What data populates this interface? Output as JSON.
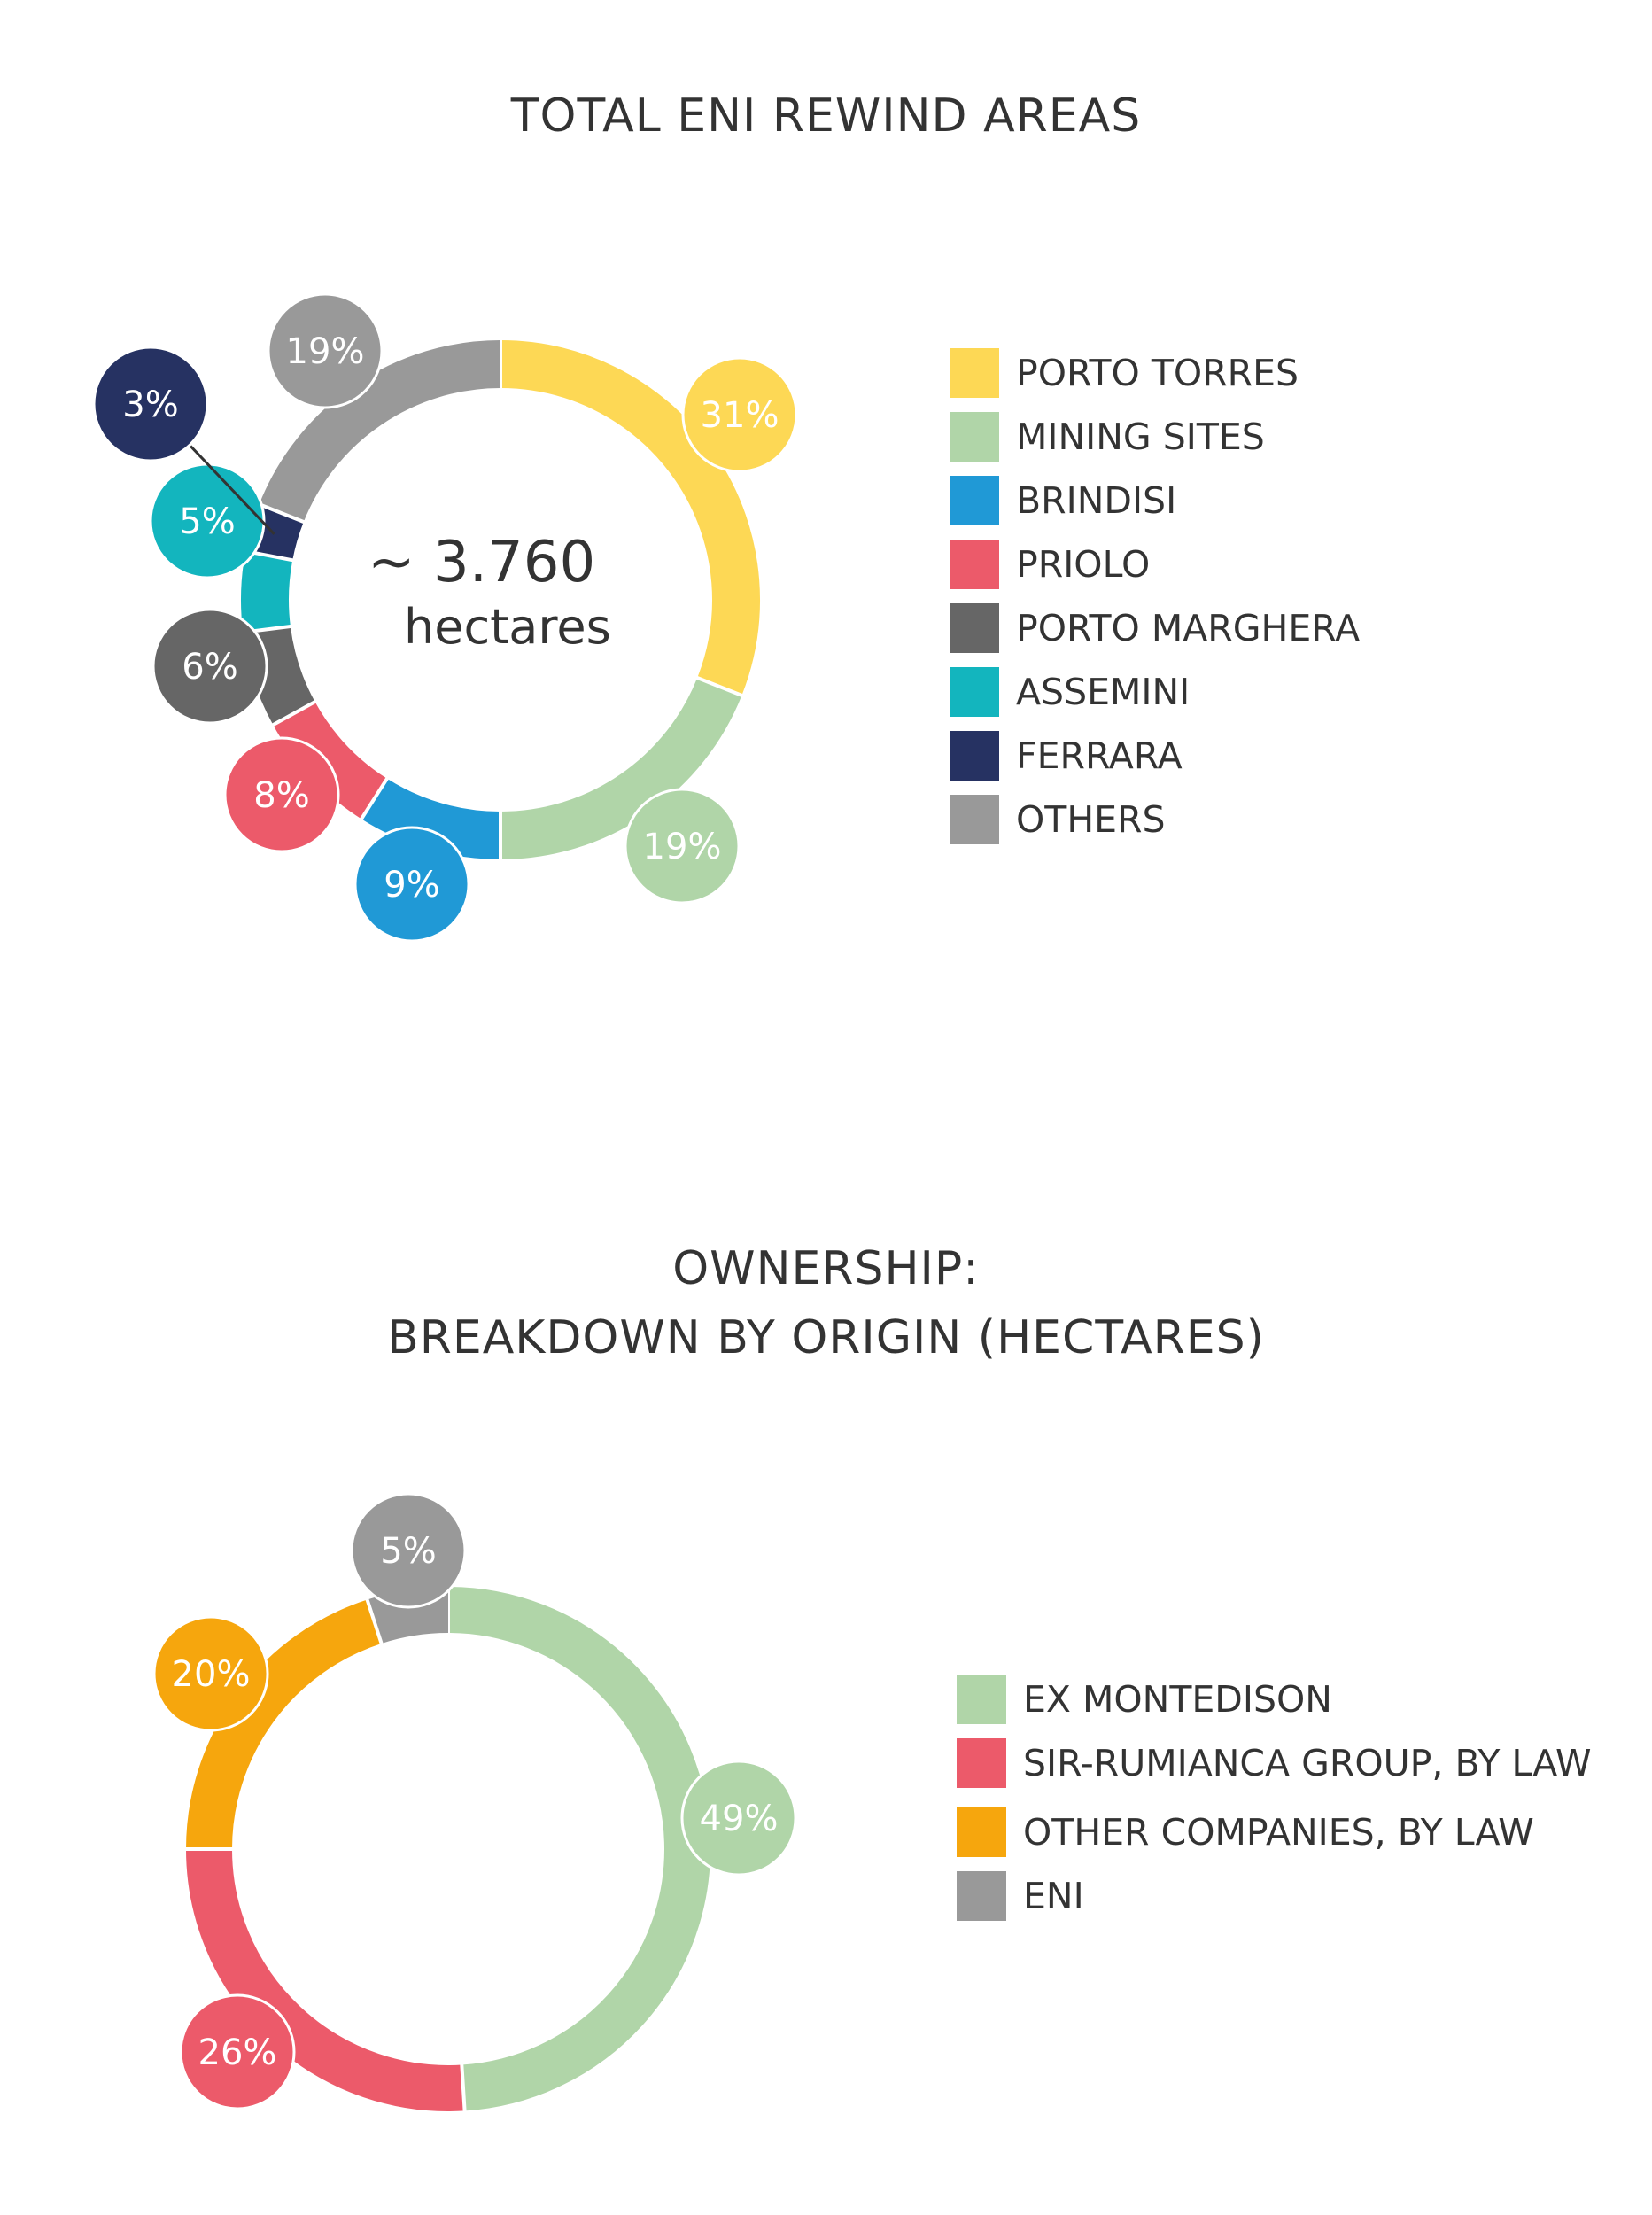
{
  "chart_data": [
    {
      "type": "pie",
      "title": "TOTAL ENI REWIND AREAS",
      "center_value": "~ 3.760",
      "center_unit": "hectares",
      "legend_placement": "right",
      "categories": [
        "PORTO TORRES",
        "MINING SITES",
        "BRINDISI",
        "PRIOLO",
        "PORTO MARGHERA",
        "ASSEMINI",
        "FERRARA",
        "OTHERS"
      ],
      "values": [
        31,
        19,
        9,
        8,
        6,
        5,
        3,
        19
      ],
      "labels": [
        "31%",
        "19%",
        "9%",
        "8%",
        "6%",
        "5%",
        "3%",
        "19%"
      ],
      "colors": [
        "#FDD855",
        "#B0D5A8",
        "#2099D6",
        "#EC5A6A",
        "#666666",
        "#13B5BE",
        "#263262",
        "#999999"
      ]
    },
    {
      "type": "pie",
      "title": "OWNERSHIP:",
      "subtitle": "BREAKDOWN BY ORIGIN (HECTARES)",
      "legend_placement": "right",
      "categories": [
        "EX MONTEDISON",
        "SIR-RUMIANCA GROUP, BY LAW",
        "OTHER COMPANIES, BY LAW",
        "ENI"
      ],
      "values": [
        49,
        26,
        20,
        5
      ],
      "labels": [
        "49%",
        "26%",
        "20%",
        "5%"
      ],
      "colors": [
        "#B0D5A8",
        "#EC5A6A",
        "#F6A60D",
        "#999999"
      ]
    }
  ]
}
